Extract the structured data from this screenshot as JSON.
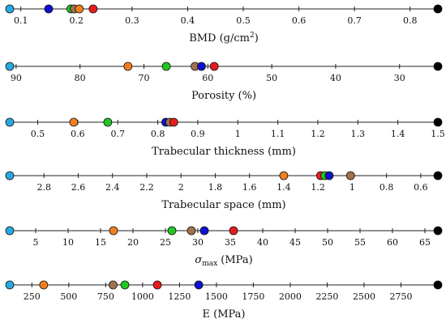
{
  "chart_data": [
    {
      "type": "scatter",
      "xlabel": "BMD (g/cm²)",
      "ticks": [
        0.1,
        0.2,
        0.3,
        0.4,
        0.5,
        0.6,
        0.7,
        0.8
      ],
      "tick_labels": [
        "0.1",
        "0.2",
        "0.3",
        "0.4",
        "0.5",
        "0.6",
        "0.7",
        "0.8"
      ],
      "xlim": [
        0.08,
        0.85
      ],
      "reversed": false,
      "points": [
        {
          "value": 0.08,
          "color": "#29a9e0"
        },
        {
          "value": 0.15,
          "color": "#1010d0"
        },
        {
          "value": 0.19,
          "color": "#22c822"
        },
        {
          "value": 0.196,
          "color": "#a0724e"
        },
        {
          "value": 0.205,
          "color": "#f07f1f"
        },
        {
          "value": 0.23,
          "color": "#e81c1c"
        },
        {
          "value": 0.85,
          "color": "#000000"
        }
      ]
    },
    {
      "type": "scatter",
      "xlabel": "Porosity (%)",
      "ticks": [
        90,
        80,
        70,
        60,
        50,
        40,
        30
      ],
      "tick_labels": [
        "90",
        "80",
        "70",
        "60",
        "50",
        "40",
        "30"
      ],
      "xlim": [
        91,
        24
      ],
      "reversed": true,
      "points": [
        {
          "value": 91,
          "color": "#29a9e0"
        },
        {
          "value": 72.5,
          "color": "#f07f1f"
        },
        {
          "value": 66.5,
          "color": "#22c822"
        },
        {
          "value": 62,
          "color": "#a0724e"
        },
        {
          "value": 61,
          "color": "#1010d0"
        },
        {
          "value": 59,
          "color": "#e81c1c"
        },
        {
          "value": 24,
          "color": "#000000"
        }
      ]
    },
    {
      "type": "scatter",
      "xlabel": "Trabecular thickness (mm)",
      "ticks": [
        0.5,
        0.6,
        0.7,
        0.8,
        0.9,
        1,
        1.1,
        1.2,
        1.3,
        1.4,
        1.5
      ],
      "tick_labels": [
        "0.5",
        "0.6",
        "0.7",
        "0.8",
        "0.9",
        "1",
        "1.1",
        "1.2",
        "1.3",
        "1.4",
        "1.5"
      ],
      "xlim": [
        0.43,
        1.5
      ],
      "reversed": false,
      "points": [
        {
          "value": 0.43,
          "color": "#29a9e0"
        },
        {
          "value": 0.59,
          "color": "#f07f1f"
        },
        {
          "value": 0.675,
          "color": "#22c822"
        },
        {
          "value": 0.82,
          "color": "#1010d0"
        },
        {
          "value": 0.83,
          "color": "#a0724e"
        },
        {
          "value": 0.84,
          "color": "#e81c1c"
        },
        {
          "value": 1.5,
          "color": "#000000"
        }
      ]
    },
    {
      "type": "scatter",
      "xlabel": "Trabecular space (mm)",
      "ticks": [
        2.8,
        2.6,
        2.4,
        2.2,
        2,
        1.8,
        1.6,
        1.4,
        1.2,
        1,
        0.8,
        0.6
      ],
      "tick_labels": [
        "2.8",
        "2.6",
        "2.4",
        "2.2",
        "2",
        "1.8",
        "1.6",
        "1.4",
        "1.2",
        "1",
        "0.8",
        "0.6"
      ],
      "xlim": [
        3.0,
        0.5
      ],
      "reversed": true,
      "points": [
        {
          "value": 3.0,
          "color": "#29a9e0"
        },
        {
          "value": 1.4,
          "color": "#f07f1f"
        },
        {
          "value": 1.185,
          "color": "#e81c1c"
        },
        {
          "value": 1.16,
          "color": "#22c822"
        },
        {
          "value": 1.135,
          "color": "#1010d0"
        },
        {
          "value": 1.01,
          "color": "#a0724e"
        },
        {
          "value": 0.5,
          "color": "#000000"
        }
      ]
    },
    {
      "type": "scatter",
      "xlabel": "σmax (MPa)",
      "ticks": [
        5,
        10,
        15,
        20,
        25,
        30,
        35,
        40,
        45,
        50,
        55,
        60,
        65
      ],
      "tick_labels": [
        "5",
        "10",
        "15",
        "20",
        "25",
        "30",
        "35",
        "40",
        "45",
        "50",
        "55",
        "60",
        "65"
      ],
      "xlim": [
        1,
        67
      ],
      "reversed": false,
      "points": [
        {
          "value": 1,
          "color": "#29a9e0"
        },
        {
          "value": 17,
          "color": "#f07f1f"
        },
        {
          "value": 26,
          "color": "#22c822"
        },
        {
          "value": 29,
          "color": "#a0724e"
        },
        {
          "value": 31,
          "color": "#1010d0"
        },
        {
          "value": 35.5,
          "color": "#e81c1c"
        },
        {
          "value": 67,
          "color": "#000000"
        }
      ]
    },
    {
      "type": "scatter",
      "xlabel": "E (MPa)",
      "ticks": [
        250,
        500,
        750,
        1000,
        1250,
        1500,
        1750,
        2000,
        2250,
        2500,
        2750
      ],
      "tick_labels": [
        "250",
        "500",
        "750",
        "1000",
        "1250",
        "1500",
        "1750",
        "2000",
        "2250",
        "2500",
        "2750"
      ],
      "xlim": [
        100,
        3000
      ],
      "reversed": false,
      "points": [
        {
          "value": 100,
          "color": "#29a9e0"
        },
        {
          "value": 330,
          "color": "#f07f1f"
        },
        {
          "value": 800,
          "color": "#a0724e"
        },
        {
          "value": 880,
          "color": "#22c822"
        },
        {
          "value": 1100,
          "color": "#e81c1c"
        },
        {
          "value": 1380,
          "color": "#1010d0"
        },
        {
          "value": 3000,
          "color": "#000000"
        }
      ]
    }
  ]
}
